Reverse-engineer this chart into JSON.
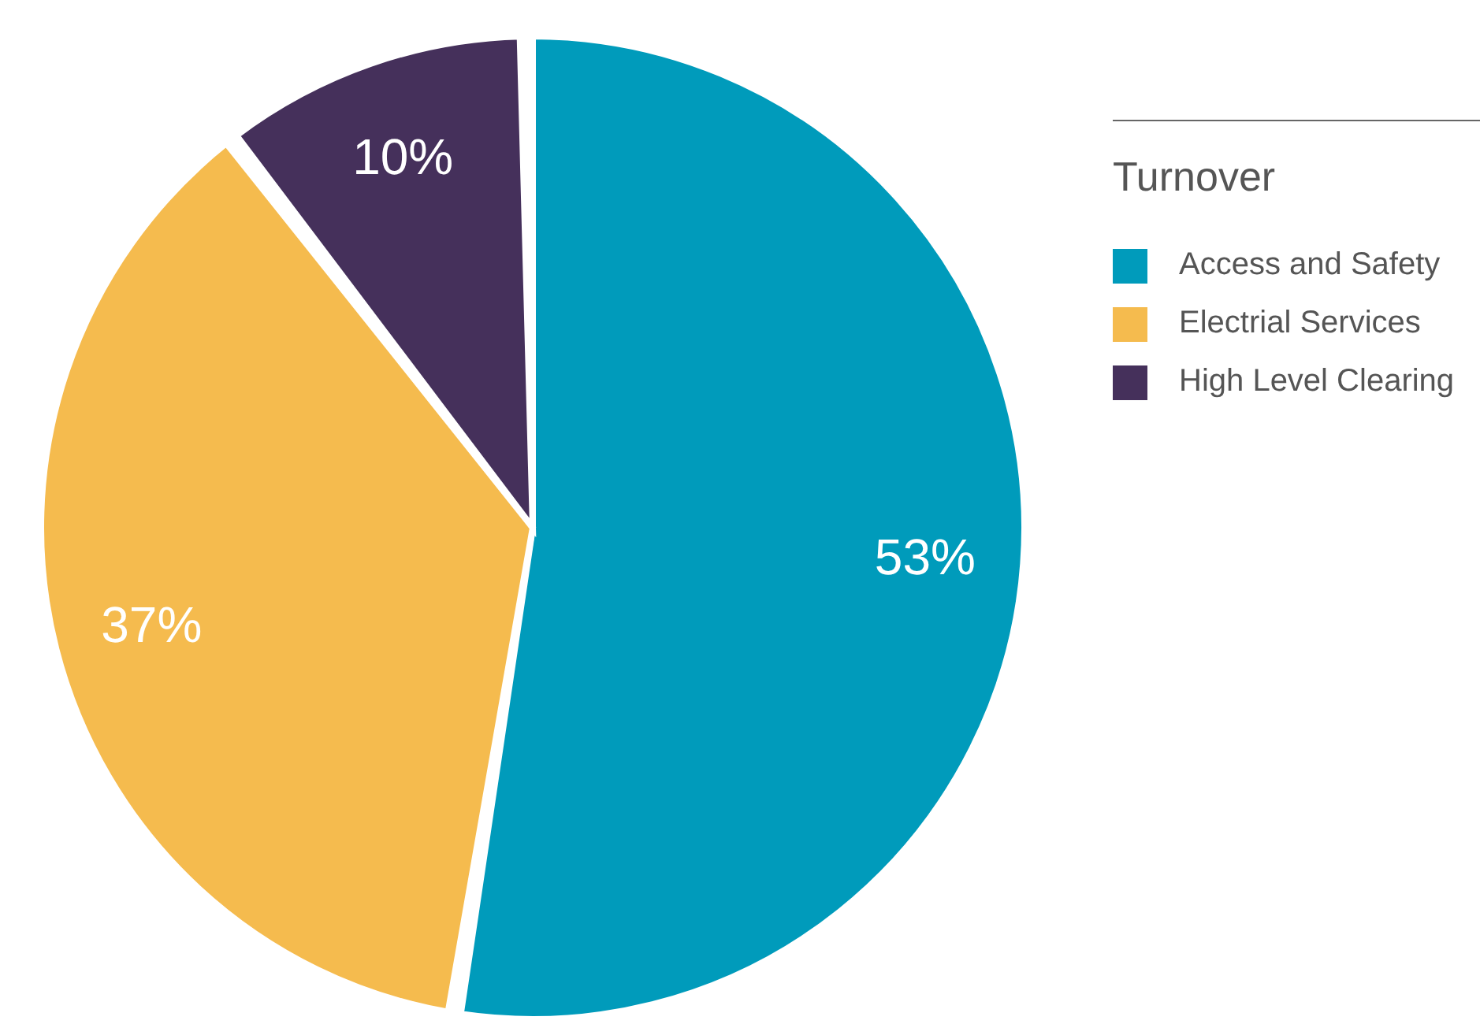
{
  "chart_data": {
    "type": "pie",
    "legend_title": "Turnover",
    "categories": [
      "Access and Safety",
      "Electrial Services",
      "High Level Clearing"
    ],
    "values": [
      53,
      37,
      10
    ],
    "colors": [
      "#009bbb",
      "#f5bb4e",
      "#45305b"
    ],
    "value_labels": [
      "53%",
      "37%",
      "10%"
    ],
    "legend": "right"
  }
}
